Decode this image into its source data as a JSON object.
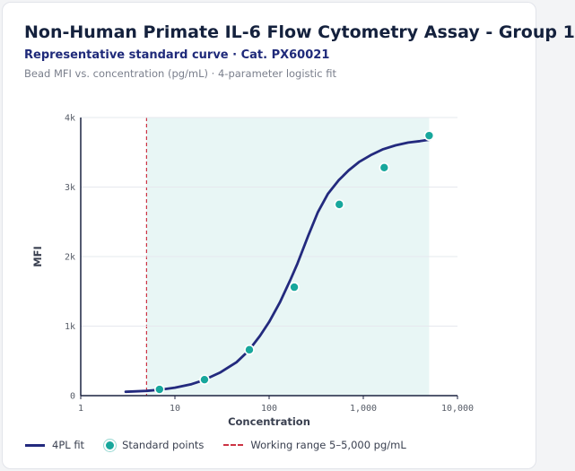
{
  "header": {
    "title": "Non-Human Primate IL-6 Flow Cytometry Assay - Group 1",
    "subtitle": "Representative standard curve · Cat. PX60021",
    "caption": "Bead MFI vs. concentration (pg/mL) · 4-parameter logistic fit"
  },
  "chart_data": {
    "type": "scatter",
    "xlabel": "Concentration",
    "ylabel": "MFI",
    "x_scale": "log",
    "xlim": [
      1,
      10000
    ],
    "ylim": [
      0,
      4000
    ],
    "x_ticks": [
      1,
      10,
      100,
      1000,
      10000
    ],
    "x_tick_labels": [
      "1",
      "10",
      "100",
      "1,000",
      "10,000"
    ],
    "y_ticks": [
      0,
      1000,
      2000,
      3000,
      4000
    ],
    "y_tick_labels": [
      "0",
      "1k",
      "2k",
      "3k",
      "4k"
    ],
    "grid": true,
    "legend_position": "bottom",
    "series": [
      {
        "name": "Standard points",
        "kind": "points",
        "color": "#17a79c",
        "x": [
          6.86,
          20.6,
          61.7,
          185,
          556,
          1667,
          5000
        ],
        "y": [
          90,
          230,
          660,
          1560,
          2750,
          3280,
          3740
        ]
      },
      {
        "name": "4PL fit",
        "kind": "line",
        "color": "#232a7e",
        "x": [
          3,
          5,
          7,
          10,
          15,
          20,
          30,
          45,
          60,
          80,
          100,
          130,
          170,
          200,
          260,
          330,
          420,
          550,
          700,
          900,
          1200,
          1600,
          2200,
          3000,
          4000,
          5000
        ],
        "y": [
          55,
          68,
          85,
          115,
          165,
          220,
          330,
          480,
          640,
          860,
          1060,
          1340,
          1680,
          1900,
          2300,
          2640,
          2900,
          3100,
          3240,
          3360,
          3460,
          3540,
          3600,
          3640,
          3660,
          3680
        ]
      },
      {
        "name": "Working range 5–5,000 pg/mL",
        "kind": "range",
        "color": "#cc3344",
        "fill": "#e8f6f5",
        "x_min": 5,
        "x_max": 5000
      }
    ]
  }
}
